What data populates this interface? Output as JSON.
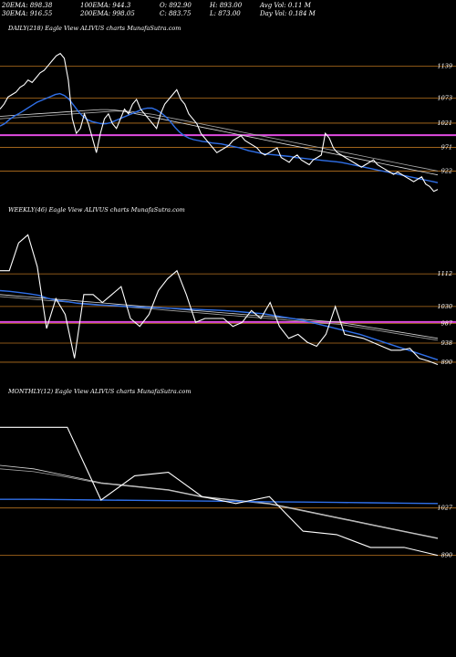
{
  "header": {
    "row1": [
      "20EMA: 898.38",
      "100EMA: 944.3",
      "O: 892.90",
      "H: 893.00",
      "Avg Vol: 0.11 M"
    ],
    "row2": [
      "30EMA: 916.55",
      "200EMA: 998.05",
      "C: 883.75",
      "L: 873.00",
      "Day Vol: 0.184  M"
    ]
  },
  "colors": {
    "price": "#ffffff",
    "ema_fast": "#2f6fe8",
    "ema_slow": "#d9d9d9",
    "ema_200": "#a8a8a8",
    "level_pink": "#e04be0",
    "level_orange": "#b8731f",
    "background": "#000000"
  },
  "chart_data": [
    {
      "type": "line",
      "title": "DAILY(218) Eagle   View  ALIVUS charts MunafaSutra.com",
      "yticks": [
        "1139",
        "1073",
        "1021",
        "971",
        "922"
      ],
      "ylim": [
        870,
        1200
      ],
      "price": [
        1050,
        1060,
        1075,
        1080,
        1085,
        1095,
        1100,
        1110,
        1105,
        1115,
        1125,
        1130,
        1140,
        1150,
        1160,
        1165,
        1155,
        1110,
        1030,
        1000,
        1010,
        1040,
        1020,
        990,
        960,
        1000,
        1030,
        1040,
        1020,
        1010,
        1030,
        1050,
        1040,
        1060,
        1070,
        1050,
        1040,
        1030,
        1020,
        1010,
        1040,
        1060,
        1070,
        1080,
        1090,
        1070,
        1060,
        1040,
        1030,
        1020,
        1000,
        990,
        980,
        970,
        960,
        965,
        970,
        975,
        985,
        990,
        995,
        985,
        980,
        975,
        970,
        960,
        955,
        960,
        965,
        970,
        950,
        945,
        940,
        950,
        955,
        945,
        940,
        935,
        945,
        950,
        955,
        1000,
        990,
        970,
        960,
        955,
        950,
        945,
        940,
        935,
        930,
        935,
        940,
        945,
        935,
        930,
        925,
        920,
        915,
        920,
        915,
        910,
        905,
        900,
        905,
        910,
        895,
        890,
        880,
        884
      ],
      "ema_fast": [
        1015,
        1020,
        1028,
        1035,
        1040,
        1046,
        1052,
        1058,
        1064,
        1068,
        1072,
        1076,
        1080,
        1082,
        1078,
        1070,
        1058,
        1045,
        1035,
        1028,
        1024,
        1022,
        1020,
        1020,
        1022,
        1026,
        1030,
        1034,
        1038,
        1042,
        1046,
        1050,
        1052,
        1052,
        1048,
        1042,
        1034,
        1024,
        1012,
        1002,
        995,
        990,
        987,
        985,
        983,
        982,
        980,
        979,
        978,
        976,
        974,
        972,
        970,
        967,
        964,
        962,
        960,
        958,
        957,
        956,
        955,
        954,
        953,
        952,
        950,
        949,
        948,
        947,
        946,
        945,
        944,
        943,
        942,
        941,
        940,
        938,
        936,
        934,
        932,
        930,
        928,
        926,
        924,
        922,
        920,
        918,
        916,
        914,
        912,
        910,
        908,
        906,
        904,
        902,
        900,
        898
      ],
      "ema_slow": [
        1035,
        1036,
        1037,
        1038,
        1039,
        1040,
        1041,
        1042,
        1043,
        1044,
        1045,
        1046,
        1047,
        1048,
        1049,
        1049,
        1048,
        1046,
        1043,
        1040,
        1037,
        1034,
        1031,
        1028,
        1025,
        1022,
        1019,
        1016,
        1013,
        1010,
        1007,
        1004,
        1001,
        998,
        995,
        992,
        989,
        986,
        983,
        980,
        977,
        974,
        971,
        968,
        965,
        962,
        959,
        956,
        953,
        950,
        947,
        944,
        941,
        938,
        935,
        932,
        929,
        926,
        923,
        920,
        917,
        914
      ],
      "ema_200": [
        1030,
        1031,
        1032,
        1033,
        1034,
        1035,
        1036,
        1037,
        1038,
        1039,
        1040,
        1041,
        1042,
        1043,
        1044,
        1045,
        1046,
        1046,
        1045,
        1043,
        1041,
        1039,
        1036,
        1033,
        1030,
        1027,
        1024,
        1021,
        1018,
        1015,
        1012,
        1009,
        1006,
        1003,
        1000,
        997,
        994,
        991,
        988,
        985,
        982,
        979,
        976,
        973,
        970,
        967,
        964,
        961,
        958,
        955,
        952,
        949,
        946,
        943,
        940,
        937,
        934,
        931,
        928,
        925,
        922
      ],
      "levels": [
        {
          "value": 1139,
          "color": "orange"
        },
        {
          "value": 1073,
          "color": "orange"
        },
        {
          "value": 1021,
          "color": "orange"
        },
        {
          "value": 996,
          "color": "pink"
        },
        {
          "value": 971,
          "color": "orange"
        },
        {
          "value": 922,
          "color": "orange"
        }
      ]
    },
    {
      "type": "line",
      "title": "WEEKLY(46) Eagle   View  ALIVUS charts MunafaSutra.com",
      "yticks": [
        "1112",
        "1030",
        "987",
        "938",
        "890"
      ],
      "ylim": [
        860,
        1250
      ],
      "price": [
        1120,
        1120,
        1190,
        1210,
        1130,
        975,
        1050,
        1010,
        900,
        1060,
        1060,
        1040,
        1060,
        1080,
        1000,
        980,
        1010,
        1070,
        1100,
        1120,
        1060,
        990,
        1000,
        1000,
        1000,
        980,
        990,
        1020,
        1000,
        1040,
        980,
        950,
        960,
        940,
        930,
        960,
        1030,
        960,
        955,
        950,
        940,
        930,
        920,
        920,
        925,
        900,
        893,
        884
      ],
      "ema_fast": [
        1070,
        1068,
        1065,
        1062,
        1058,
        1050,
        1045,
        1042,
        1038,
        1036,
        1034,
        1033,
        1032,
        1030,
        1029,
        1028,
        1027,
        1026,
        1025,
        1024,
        1023,
        1022,
        1021,
        1020,
        1018,
        1016,
        1014,
        1012,
        1008,
        1004,
        1000,
        996,
        990,
        984,
        978,
        972,
        966,
        960,
        952,
        944,
        936,
        928,
        920,
        912,
        904,
        896
      ],
      "ema_slow": [
        1060,
        1058,
        1056,
        1054,
        1052,
        1050,
        1048,
        1046,
        1044,
        1042,
        1040,
        1038,
        1036,
        1034,
        1032,
        1030,
        1028,
        1026,
        1024,
        1022,
        1020,
        1018,
        1016,
        1014,
        1012,
        1010,
        1008,
        1006,
        1004,
        1002,
        1000,
        998,
        996,
        994,
        992,
        990,
        986,
        982,
        978,
        974,
        970,
        966,
        962,
        958,
        954,
        950
      ],
      "ema_200": [
        1055,
        1053,
        1051,
        1049,
        1047,
        1045,
        1043,
        1041,
        1039,
        1037,
        1035,
        1033,
        1031,
        1029,
        1027,
        1025,
        1023,
        1021,
        1019,
        1017,
        1015,
        1013,
        1011,
        1009,
        1007,
        1005,
        1003,
        1001,
        999,
        997,
        995,
        993,
        991,
        989,
        987,
        985,
        981,
        977,
        973,
        969,
        965,
        961,
        957,
        953,
        949,
        945
      ],
      "levels": [
        {
          "value": 1112,
          "color": "orange"
        },
        {
          "value": 1030,
          "color": "orange"
        },
        {
          "value": 991,
          "color": "pink"
        },
        {
          "value": 987,
          "color": "orange"
        },
        {
          "value": 938,
          "color": "orange"
        },
        {
          "value": 890,
          "color": "orange"
        }
      ]
    },
    {
      "type": "line",
      "title": "MONTHLY(12) Eagle   View  ALIVUS charts MunafaSutra.com",
      "yticks": [
        "1027",
        "890"
      ],
      "ylim": [
        860,
        1340
      ],
      "price": [
        1260,
        1260,
        1260,
        1050,
        1120,
        1130,
        1060,
        1040,
        1060,
        960,
        950,
        913,
        913,
        890
      ],
      "ema_fast": [
        1052,
        1052,
        1051,
        1050,
        1049,
        1048,
        1047,
        1046,
        1045,
        1044,
        1043,
        1042,
        1041,
        1040
      ],
      "ema_slow": [
        1150,
        1140,
        1120,
        1100,
        1090,
        1080,
        1060,
        1050,
        1040,
        1020,
        1000,
        980,
        960,
        940
      ],
      "ema_200": [
        1140,
        1132,
        1116,
        1098,
        1088,
        1078,
        1058,
        1048,
        1038,
        1018,
        998,
        978,
        958,
        938
      ],
      "levels": [
        {
          "value": 1027,
          "color": "orange"
        },
        {
          "value": 890,
          "color": "orange"
        }
      ]
    }
  ]
}
